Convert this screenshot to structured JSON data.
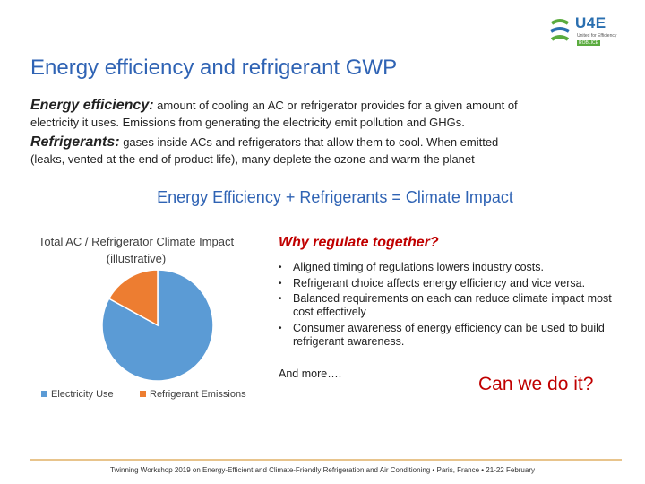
{
  "logo": {
    "brand": "U4E",
    "subtitle": "United for Efficiency",
    "tag": "ROBLICE",
    "colors": {
      "blue": "#2a6fb0",
      "green": "#5aab3e"
    }
  },
  "title": "Energy efficiency and refrigerant GWP",
  "energy_efficiency": {
    "lead": "Energy efficiency:",
    "text_line1": " amount of cooling an AC or refrigerator provides for a given amount of",
    "text_line2": "electricity it uses. Emissions from generating the electricity emit pollution and GHGs."
  },
  "refrigerants": {
    "lead": "Refrigerants:",
    "text_line1": "  gases inside ACs and refrigerators that allow them to cool. When emitted",
    "text_line2": "(leaks, vented at the end of product life), many deplete the ozone and warm the planet"
  },
  "equation": "Energy Efficiency + Refrigerants =  Climate Impact",
  "chart_data": {
    "type": "pie",
    "title_line1": "Total AC / Refrigerator Climate Impact",
    "title_line2": "(illustrative)",
    "categories": [
      "Electricity Use",
      "Refrigerant Emissions"
    ],
    "values": [
      83,
      17
    ],
    "colors": [
      "#5b9bd5",
      "#ed7d31"
    ],
    "legend_position": "bottom"
  },
  "why": {
    "title": "Why regulate together?",
    "bullets": [
      "Aligned timing of regulations lowers industry costs.",
      "Refrigerant choice affects energy efficiency and vice versa.",
      "Balanced requirements on each can reduce climate impact most cost effectively",
      "Consumer awareness of energy efficiency can be used to build refrigerant awareness."
    ],
    "bullet_symbol": "•",
    "and_more": "And more…."
  },
  "can_we": "Can we do it?",
  "footer": "Twinning Workshop 2019 on Energy-Efficient and Climate-Friendly Refrigeration and Air Conditioning • Paris, France • 21-22 February"
}
